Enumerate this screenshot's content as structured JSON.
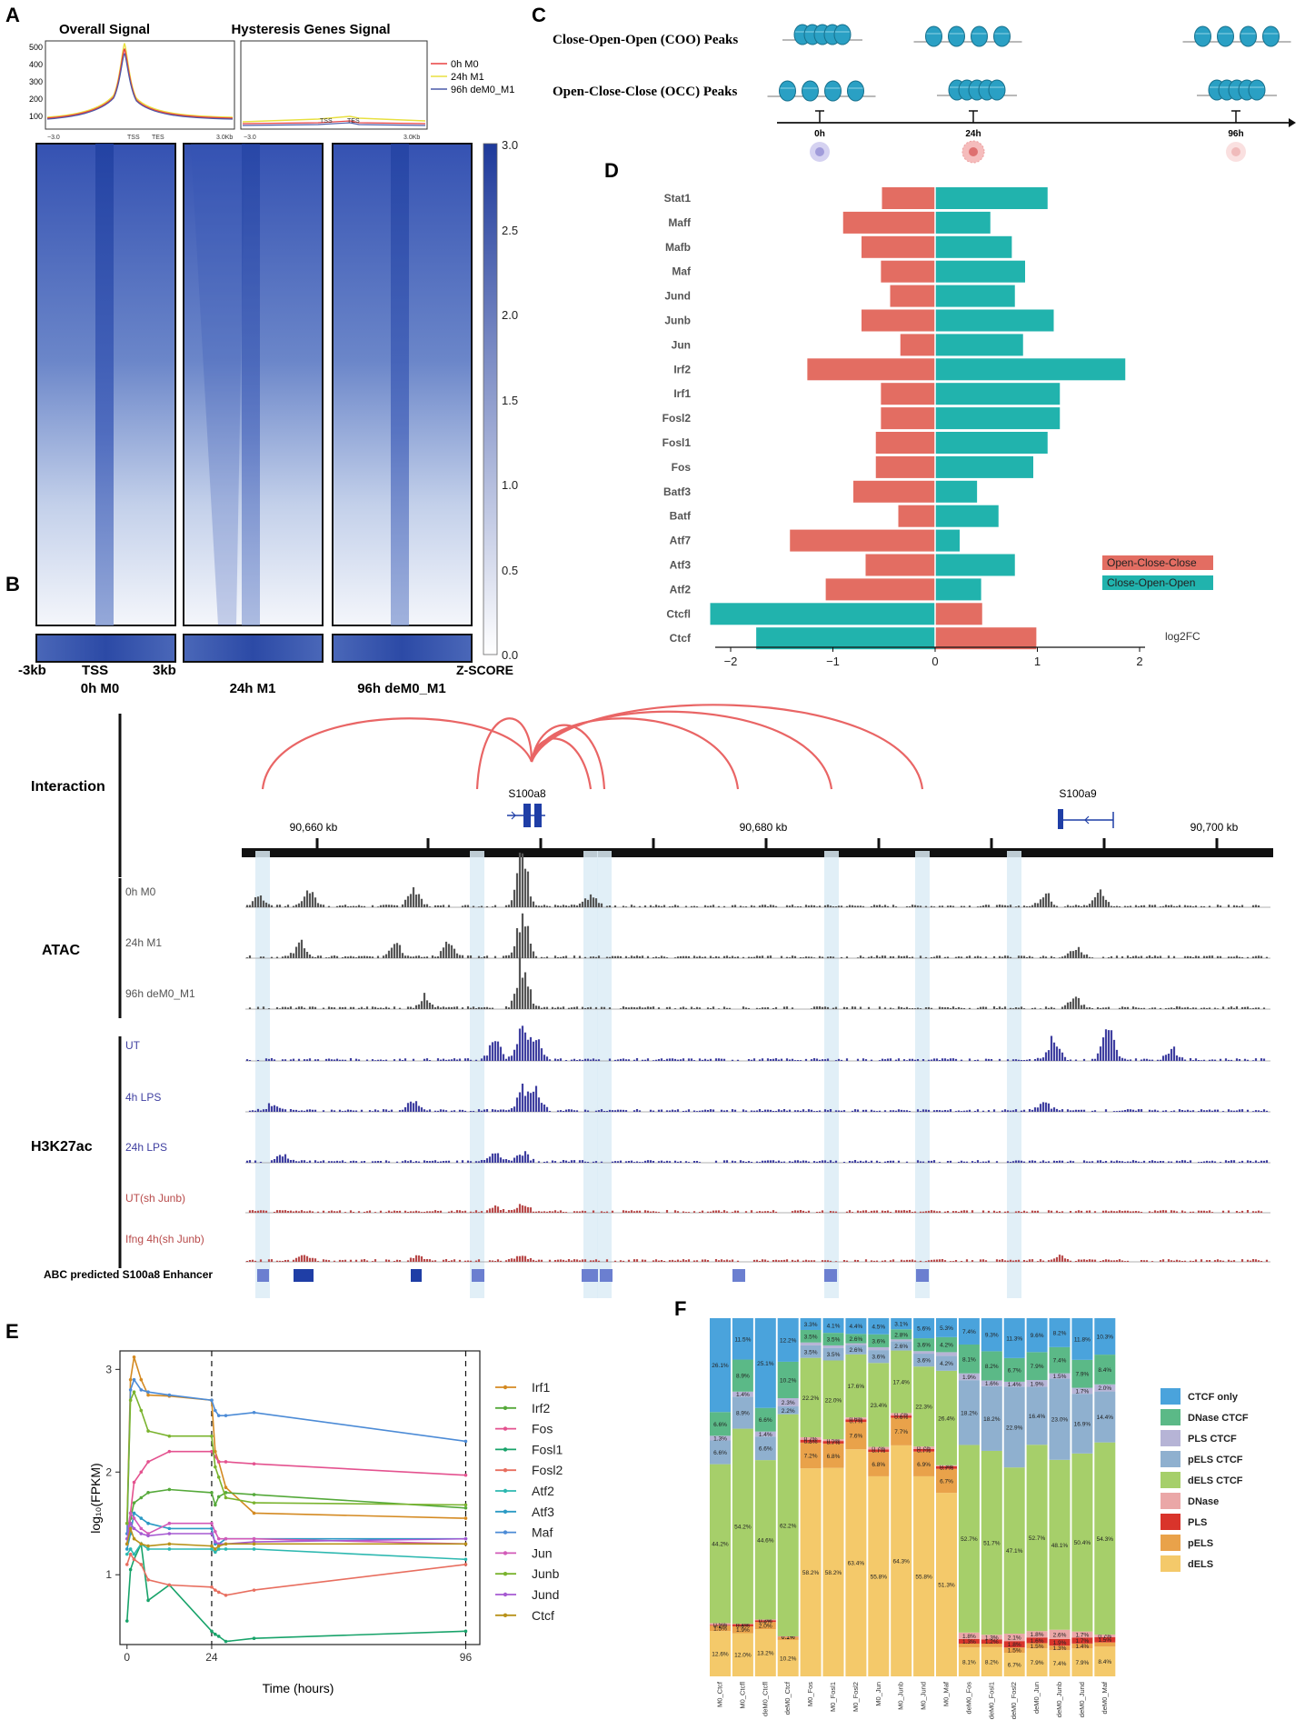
{
  "colors": {
    "heat_dark": "#2e4aa8",
    "heat_light": "#ffffff",
    "occ": "#e36d62",
    "coo": "#21b3ad",
    "atac": "#555555",
    "h3k_blue": "#3f3fa0",
    "h3k_red": "#b84a4a",
    "arc": "#e96565",
    "highlight": "#dcecf6",
    "gene": "#1f3ea6"
  },
  "panel_labels": [
    "A",
    "B",
    "C",
    "D",
    "E",
    "F"
  ],
  "panelA": {
    "profile_titles": [
      "Overall Signal",
      "Hysteresis Genes Signal"
    ],
    "profile_yticks": [
      "500",
      "400",
      "300",
      "200",
      "100"
    ],
    "profile_xticks": [
      "−3.0",
      "TSS",
      "TES",
      "3.0Kb"
    ],
    "legend": [
      {
        "label": "0h M0",
        "color": "#e84040"
      },
      {
        "label": "24h M1",
        "color": "#e8e040"
      },
      {
        "label": "96h deM0_M1",
        "color": "#4a5aa8"
      }
    ],
    "colorbar_ticks": [
      "3.0",
      "2.5",
      "2.0",
      "1.5",
      "1.0",
      "0.5",
      "0.0"
    ],
    "colorbar_label": "Z-SCORE",
    "x_left": "-3kb",
    "x_tss": "TSS",
    "x_right": "3kb",
    "heatmap_labels": [
      "0h M0",
      "24h M1",
      "96h deM0_M1"
    ]
  },
  "panelB": {
    "interaction_label": "Interaction",
    "genes": [
      "S100a8",
      "S100a9"
    ],
    "coords": [
      "90,660 kb",
      "90,680 kb",
      "90,700 kb"
    ],
    "atac_label": "ATAC",
    "h3k_label": "H3K27ac",
    "atac_tracks": [
      "0h M0",
      "24h M1",
      "96h deM0_M1"
    ],
    "h3k_tracks": [
      "UT",
      "4h LPS",
      "24h LPS",
      "UT(sh Junb)",
      "Ifng 4h(sh Junb)"
    ],
    "abc_label": "ABC predicted  S100a8 Enhancer"
  },
  "panelC": {
    "rows": [
      "Close-Open-Open (COO) Peaks",
      "Open-Close-Close (OCC) Peaks"
    ],
    "times": [
      "0h",
      "24h",
      "96h"
    ]
  },
  "chart_data": [
    {
      "panel": "D",
      "type": "bar",
      "orientation": "horizontal",
      "categories": [
        "Stat1",
        "Maff",
        "Mafb",
        "Maf",
        "Jund",
        "Junb",
        "Jun",
        "Irf2",
        "Irf1",
        "Fosl2",
        "Fosl1",
        "Fos",
        "Batf3",
        "Batf",
        "Atf7",
        "Atf3",
        "Atf2",
        "Ctcfl",
        "Ctcf"
      ],
      "series": [
        {
          "name": "Open-Close-Close",
          "values": [
            -0.52,
            -0.9,
            -0.72,
            -0.53,
            -0.44,
            -0.72,
            -0.34,
            -1.25,
            -0.53,
            -0.53,
            -0.58,
            -0.58,
            -0.8,
            -0.36,
            -1.42,
            -0.68,
            -1.07,
            0.46,
            0.99
          ]
        },
        {
          "name": "Close-Open-Open",
          "values": [
            1.1,
            0.54,
            0.75,
            0.88,
            0.78,
            1.16,
            0.86,
            1.86,
            1.22,
            1.22,
            1.1,
            0.96,
            0.41,
            0.62,
            0.24,
            0.78,
            0.45,
            -2.2,
            -1.75
          ]
        }
      ],
      "xlabel": "log2FC",
      "xticks": [
        -2,
        -1,
        0,
        1,
        2
      ],
      "xlim": [
        -2.25,
        2.25
      ]
    },
    {
      "panel": "E",
      "type": "line",
      "xlabel": "Time (hours)",
      "ylabel": "log₁₀(FPKM)",
      "xticks": [
        0,
        24,
        96
      ],
      "yticks": [
        1,
        2,
        3
      ],
      "xlim": [
        -2,
        100
      ],
      "ylim": [
        0.32,
        3.18
      ],
      "vlines": [
        24,
        96
      ],
      "x": [
        0,
        1,
        2,
        4,
        6,
        12,
        24,
        25,
        26,
        28,
        36,
        96
      ],
      "series": [
        {
          "name": "Irf1",
          "color": "#d48a22",
          "values": [
            1.5,
            2.9,
            3.12,
            2.9,
            2.75,
            2.74,
            2.7,
            2.2,
            2.1,
            1.85,
            1.6,
            1.55
          ]
        },
        {
          "name": "Irf2",
          "color": "#55a93a",
          "values": [
            1.3,
            1.55,
            1.7,
            1.75,
            1.8,
            1.83,
            1.8,
            1.68,
            1.76,
            1.8,
            1.78,
            1.65
          ]
        },
        {
          "name": "Fos",
          "color": "#e4528f",
          "values": [
            1.4,
            1.6,
            1.9,
            2.0,
            2.1,
            2.2,
            2.2,
            2.15,
            2.1,
            2.1,
            2.08,
            1.97
          ]
        },
        {
          "name": "Fosl1",
          "color": "#18a36a",
          "values": [
            0.55,
            1.05,
            1.15,
            1.3,
            0.75,
            0.9,
            0.45,
            0.42,
            0.4,
            0.35,
            0.38,
            0.45
          ]
        },
        {
          "name": "Fosl2",
          "color": "#e86e5f",
          "values": [
            1.1,
            1.2,
            1.15,
            1.1,
            0.95,
            0.9,
            0.88,
            0.85,
            0.83,
            0.8,
            0.85,
            1.1
          ]
        },
        {
          "name": "Atf2",
          "color": "#2db8b0",
          "values": [
            1.2,
            1.25,
            1.2,
            1.3,
            1.25,
            1.25,
            1.25,
            1.22,
            1.25,
            1.25,
            1.25,
            1.15
          ]
        },
        {
          "name": "Atf3",
          "color": "#2b9ac4",
          "values": [
            1.25,
            1.4,
            1.6,
            1.55,
            1.5,
            1.45,
            1.45,
            1.3,
            1.3,
            1.35,
            1.35,
            1.35
          ]
        },
        {
          "name": "Maf",
          "color": "#4c8bd6",
          "values": [
            1.4,
            2.8,
            2.9,
            2.8,
            2.78,
            2.75,
            2.7,
            2.6,
            2.55,
            2.55,
            2.58,
            2.3
          ]
        },
        {
          "name": "Jun",
          "color": "#d25ab8",
          "values": [
            1.3,
            1.6,
            1.55,
            1.45,
            1.4,
            1.5,
            1.5,
            1.42,
            1.35,
            1.35,
            1.35,
            1.3
          ]
        },
        {
          "name": "Junb",
          "color": "#7ab32e",
          "values": [
            1.5,
            2.7,
            2.78,
            2.6,
            2.4,
            2.35,
            2.35,
            2.05,
            1.95,
            1.75,
            1.7,
            1.68
          ]
        },
        {
          "name": "Jund",
          "color": "#a65ad2",
          "values": [
            1.35,
            1.5,
            1.45,
            1.4,
            1.38,
            1.4,
            1.4,
            1.32,
            1.3,
            1.3,
            1.32,
            1.35
          ]
        },
        {
          "name": "Ctcf",
          "color": "#b8921a",
          "values": [
            1.3,
            1.45,
            1.35,
            1.3,
            1.28,
            1.3,
            1.28,
            1.25,
            1.28,
            1.3,
            1.3,
            1.3
          ]
        }
      ]
    },
    {
      "panel": "F",
      "type": "bar",
      "stacked": true,
      "normalized": true,
      "categories": [
        "M0_Ctcf",
        "M0_Ctcfl",
        "deM0_Ctcfl",
        "deM0_Ctcf",
        "M0_Fos",
        "M0_Fosl1",
        "M0_Fosl2",
        "M0_Jun",
        "M0_Junb",
        "M0_Jund",
        "M0_Maf",
        "deM0_Fos",
        "deM0_Fosl1",
        "deM0_Fosl2",
        "deM0_Jun",
        "deM0_Junb",
        "deM0_Jund",
        "deM0_Maf"
      ],
      "legend": [
        "CTCF only",
        "DNase CTCF",
        "PLS CTCF",
        "pELS CTCF",
        "dELS CTCF",
        "DNase",
        "PLS",
        "pELS",
        "dELS"
      ],
      "legend_colors": [
        "#4aa3dc",
        "#5bb987",
        "#b6b4d6",
        "#8fb0cf",
        "#a6cf6a",
        "#eaa7a7",
        "#d9342b",
        "#e9a24a",
        "#f4c96a"
      ],
      "stack_order_bottom_to_top": [
        "dELS",
        "pELS",
        "PLS",
        "DNase",
        "dELS CTCF",
        "pELS CTCF",
        "PLS CTCF",
        "DNase CTCF",
        "CTCF only"
      ],
      "series": [
        {
          "name": "dELS",
          "values": [
            12.6,
            12.0,
            13.2,
            10.2,
            58.2,
            58.2,
            63.4,
            55.8,
            64.3,
            55.8,
            51.3,
            8.1,
            8.2,
            6.7,
            7.9,
            7.4,
            7.9,
            8.4
          ]
        },
        {
          "name": "pELS",
          "values": [
            1.5,
            1.9,
            2.0,
            0.8,
            7.2,
            6.8,
            7.6,
            6.8,
            7.7,
            6.9,
            6.7,
            1.1,
            1.0,
            1.5,
            1.5,
            1.3,
            1.4,
            1.2
          ]
        },
        {
          "name": "PLS",
          "values": [
            0.2,
            0.6,
            0.5,
            0.1,
            0.8,
            0.7,
            0.7,
            0.7,
            0.6,
            0.7,
            0.7,
            1.3,
            1.2,
            1.8,
            1.6,
            1.9,
            1.7,
            1.5
          ]
        },
        {
          "name": "DNase",
          "values": [
            0.5,
            0.1,
            0.2,
            0.1,
            0.7,
            0.5,
            0.6,
            0.7,
            0.7,
            0.7,
            0.3,
            1.8,
            1.3,
            2.1,
            1.8,
            2.6,
            1.7,
            0.7
          ]
        },
        {
          "name": "dELS CTCF",
          "values": [
            44.2,
            54.2,
            44.6,
            62.2,
            22.2,
            22.0,
            17.6,
            23.4,
            17.4,
            22.3,
            26.4,
            52.7,
            51.7,
            47.1,
            52.7,
            48.1,
            50.4,
            54.3
          ]
        },
        {
          "name": "pELS CTCF",
          "values": [
            6.6,
            8.9,
            6.6,
            2.2,
            3.5,
            3.5,
            2.6,
            3.6,
            2.6,
            3.6,
            4.2,
            18.2,
            18.2,
            22.9,
            16.4,
            23.0,
            16.9,
            14.4
          ]
        },
        {
          "name": "PLS CTCF",
          "values": [
            1.3,
            1.4,
            1.4,
            2.3,
            0.8,
            0.7,
            0.5,
            0.8,
            0.5,
            0.7,
            1.0,
            1.9,
            1.6,
            1.4,
            1.9,
            1.5,
            1.7,
            2.0
          ]
        },
        {
          "name": "DNase CTCF",
          "values": [
            6.6,
            8.9,
            6.6,
            10.2,
            3.5,
            3.5,
            2.6,
            3.6,
            2.8,
            3.6,
            4.2,
            8.1,
            8.2,
            6.7,
            7.9,
            7.4,
            7.9,
            8.4
          ]
        },
        {
          "name": "CTCF only",
          "values": [
            26.1,
            11.5,
            25.1,
            12.2,
            3.3,
            4.1,
            4.4,
            4.5,
            3.1,
            5.6,
            5.3,
            7.4,
            9.3,
            11.3,
            9.6,
            8.2,
            11.8,
            10.3
          ]
        }
      ],
      "shown_labels": {
        "dELS": true,
        "pELS": true,
        "PLS": true,
        "DNase": true,
        "dELS CTCF": true,
        "pELS CTCF": true,
        "PLS CTCF": true,
        "DNase CTCF": true,
        "CTCF only": true
      }
    }
  ]
}
